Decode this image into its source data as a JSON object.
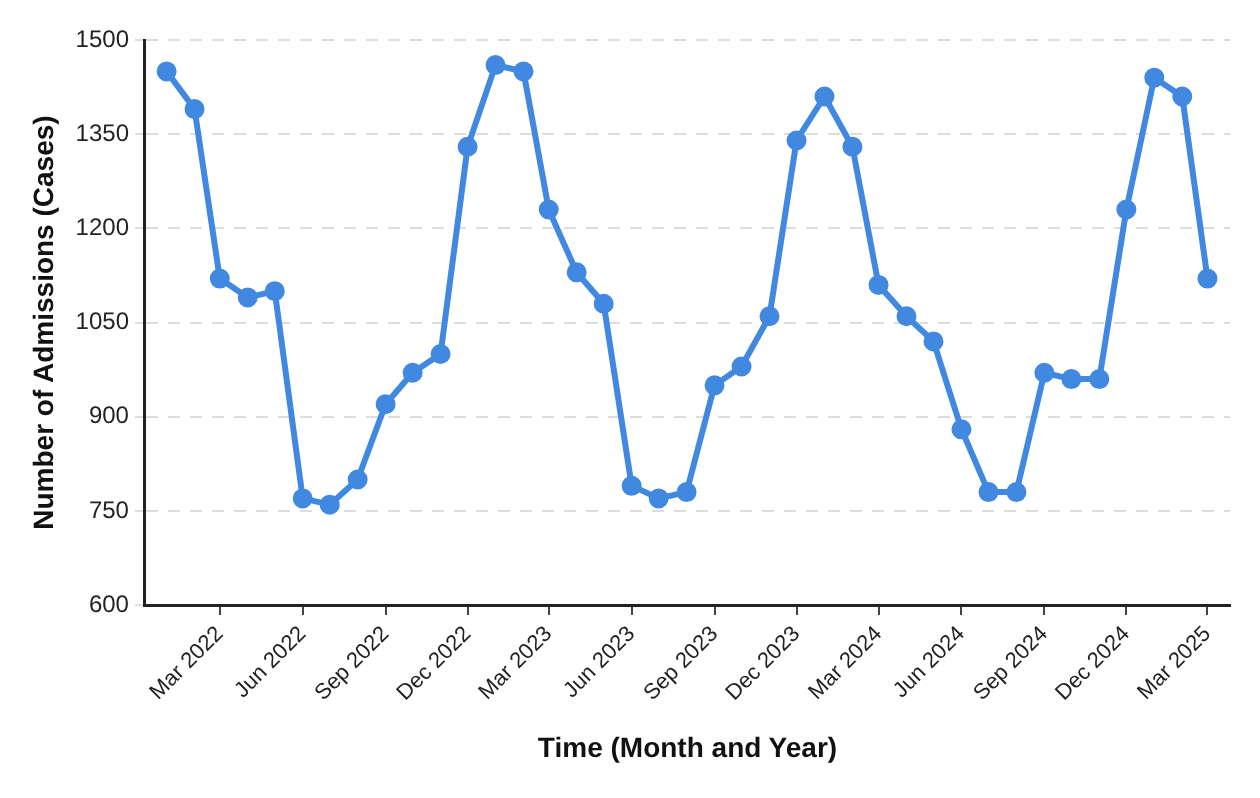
{
  "chart_data": {
    "type": "line",
    "xlabel": "Time (Month and Year)",
    "ylabel": "Number of Admissions (Cases)",
    "x": [
      "2022-01",
      "2022-02",
      "2022-03",
      "2022-04",
      "2022-05",
      "2022-06",
      "2022-07",
      "2022-08",
      "2022-09",
      "2022-10",
      "2022-11",
      "2022-12",
      "2023-01",
      "2023-02",
      "2023-03",
      "2023-04",
      "2023-05",
      "2023-06",
      "2023-07",
      "2023-08",
      "2023-09",
      "2023-10",
      "2023-11",
      "2023-12",
      "2024-01",
      "2024-02",
      "2024-03",
      "2024-04",
      "2024-05",
      "2024-06",
      "2024-07",
      "2024-08",
      "2024-09",
      "2024-10",
      "2024-11",
      "2024-12",
      "2025-01",
      "2025-02",
      "2025-03"
    ],
    "series": [
      {
        "color": "#4189e0",
        "values": [
          1450,
          1390,
          1120,
          1090,
          1100,
          770,
          760,
          800,
          920,
          970,
          1000,
          1330,
          1460,
          1450,
          1230,
          1130,
          1080,
          790,
          770,
          780,
          950,
          980,
          1060,
          1340,
          1410,
          1330,
          1110,
          1060,
          1020,
          880,
          780,
          780,
          970,
          960,
          960,
          1230,
          1440,
          1410,
          1120
        ]
      }
    ],
    "xlim": [
      "2021-12-08",
      "2025-03-26"
    ],
    "xticks": [
      {
        "value": "2022-03",
        "label": "Mar 2022"
      },
      {
        "value": "2022-06",
        "label": "Jun 2022"
      },
      {
        "value": "2022-09",
        "label": "Sep 2022"
      },
      {
        "value": "2022-12",
        "label": "Dec 2022"
      },
      {
        "value": "2023-03",
        "label": "Mar 2023"
      },
      {
        "value": "2023-06",
        "label": "Jun 2023"
      },
      {
        "value": "2023-09",
        "label": "Sep 2023"
      },
      {
        "value": "2023-12",
        "label": "Dec 2023"
      },
      {
        "value": "2024-03",
        "label": "Mar 2024"
      },
      {
        "value": "2024-06",
        "label": "Jun 2024"
      },
      {
        "value": "2024-09",
        "label": "Sep 2024"
      },
      {
        "value": "2024-12",
        "label": "Dec 2024"
      },
      {
        "value": "2025-03",
        "label": "Mar 2025"
      }
    ],
    "ylim": [
      600,
      1500
    ],
    "yticks": [
      600,
      750,
      900,
      1050,
      1200,
      1350,
      1500
    ],
    "grid": "y",
    "legend": false,
    "marker": "circle",
    "line_style": "solid"
  }
}
